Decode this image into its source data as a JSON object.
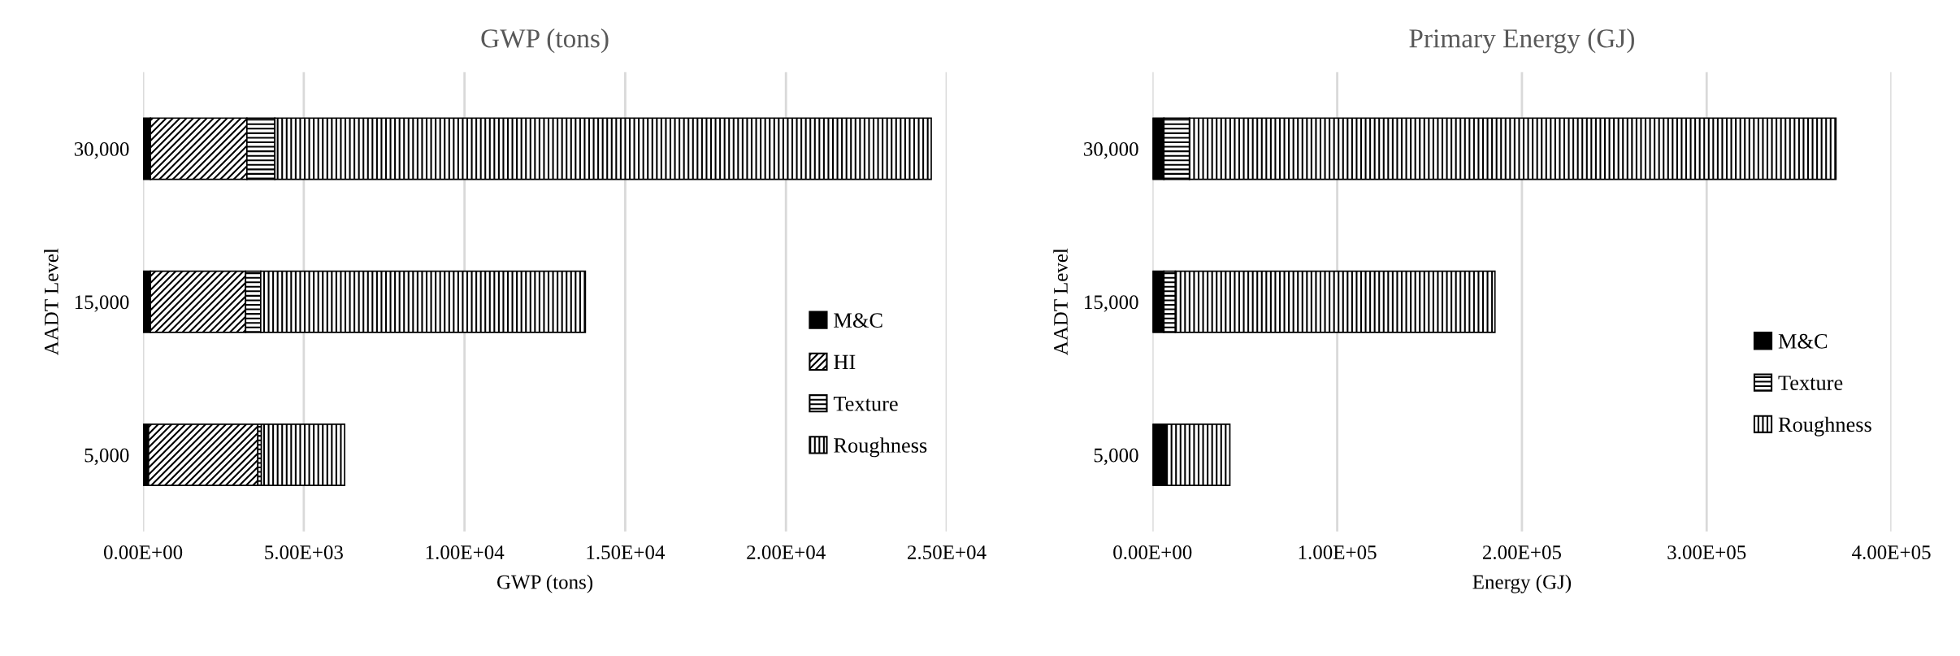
{
  "chart_data": [
    {
      "type": "bar",
      "orientation": "horizontal",
      "stacked": true,
      "title": "GWP (tons)",
      "xlabel": "GWP (tons)",
      "ylabel": "AADT Level",
      "categories": [
        "30,000",
        "15,000",
        "5,000"
      ],
      "series": [
        {
          "name": "M&C",
          "color": "#000000",
          "values": [
            230,
            230,
            170
          ]
        },
        {
          "name": "HI",
          "color": "#000000",
          "values": [
            3000,
            2960,
            3400
          ]
        },
        {
          "name": "Texture",
          "color": "#000000",
          "values": [
            870,
            470,
            110
          ]
        },
        {
          "name": "Roughness",
          "color": "#000000",
          "values": [
            20420,
            10100,
            2590
          ]
        }
      ],
      "xlim": [
        0,
        25000
      ],
      "xticks": [
        {
          "value": 0,
          "label": "0.00E+00"
        },
        {
          "value": 5000,
          "label": "5.00E+03"
        },
        {
          "value": 10000,
          "label": "1.00E+04"
        },
        {
          "value": 15000,
          "label": "1.50E+04"
        },
        {
          "value": 20000,
          "label": "2.00E+04"
        },
        {
          "value": 25000,
          "label": "2.50E+04"
        }
      ],
      "grid": "x",
      "legend": "right"
    },
    {
      "type": "bar",
      "orientation": "horizontal",
      "stacked": true,
      "title": "Primary Energy (GJ)",
      "xlabel": "Energy (GJ)",
      "ylabel": "AADT Level",
      "categories": [
        "30,000",
        "15,000",
        "5,000"
      ],
      "series": [
        {
          "name": "M&C",
          "color": "#000000",
          "values": [
            6200,
            6200,
            7900
          ]
        },
        {
          "name": "Texture",
          "color": "#000000",
          "values": [
            13800,
            6200,
            null
          ]
        },
        {
          "name": "Roughness",
          "color": "#000000",
          "values": [
            350000,
            173000,
            34000
          ]
        }
      ],
      "xlim": [
        0,
        400000
      ],
      "xticks": [
        {
          "value": 0,
          "label": "0.00E+00"
        },
        {
          "value": 100000,
          "label": "1.00E+05"
        },
        {
          "value": 200000,
          "label": "2.00E+05"
        },
        {
          "value": 300000,
          "label": "3.00E+05"
        },
        {
          "value": 400000,
          "label": "4.00E+05"
        }
      ],
      "grid": "x",
      "legend": "right"
    }
  ]
}
